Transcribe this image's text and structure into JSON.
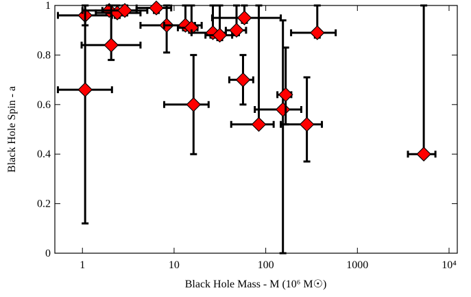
{
  "chart_data": {
    "type": "scatter",
    "xlabel": "Black Hole Mass - M (10⁶ M☉)",
    "ylabel": "Black Hole Spin - a",
    "xscale": "log",
    "xlim": [
      0.5,
      12300
    ],
    "ylim": [
      0,
      1
    ],
    "xticks": [
      1,
      10,
      100,
      1000,
      {
        "value": 10000,
        "label": "10⁴"
      }
    ],
    "yticks": [
      0,
      0.2,
      0.4,
      0.6,
      0.8,
      1
    ],
    "color": "#ff0000",
    "x": [
      1.07,
      1.96,
      2.4,
      2.9,
      6.4,
      2.06,
      1.07,
      8.3,
      13.3,
      15.5,
      26.5,
      31.5,
      48,
      58.5,
      365,
      16.3,
      56.5,
      84,
      154,
      165,
      281,
      5300
    ],
    "y": [
      0.96,
      0.98,
      0.97,
      0.98,
      0.99,
      0.84,
      0.66,
      0.92,
      0.92,
      0.91,
      0.89,
      0.88,
      0.9,
      0.95,
      0.89,
      0.6,
      0.7,
      0.52,
      0.58,
      0.64,
      0.52,
      0.4
    ],
    "x_lo": [
      0.54,
      1.0,
      1.4,
      1.65,
      3.9,
      0.98,
      0.54,
      4.3,
      7.8,
      11,
      15.5,
      22,
      36.7,
      26,
      189,
      7.8,
      40,
      42,
      76,
      134,
      146,
      3560
    ],
    "x_hi": [
      2.1,
      3.9,
      4.3,
      5.1,
      9.3,
      4.3,
      2.1,
      16.9,
      20,
      18,
      36.7,
      43,
      61,
      146,
      580,
      23.8,
      73,
      122,
      244,
      190,
      410,
      7100
    ],
    "y_lo": [
      0.92,
      0.96,
      0.95,
      0.96,
      0.97,
      0.78,
      0.12,
      0.81,
      0.9,
      0.89,
      0.87,
      0.86,
      0.88,
      0.93,
      0.87,
      0.4,
      0.6,
      0.52,
      0,
      0.52,
      0.37,
      0.4
    ],
    "y_hi": [
      1,
      1,
      1,
      1,
      1,
      1,
      1,
      1,
      1,
      1,
      1,
      1,
      1,
      1,
      1,
      0.8,
      0.8,
      1,
      0.94,
      0.83,
      0.71,
      1
    ]
  }
}
